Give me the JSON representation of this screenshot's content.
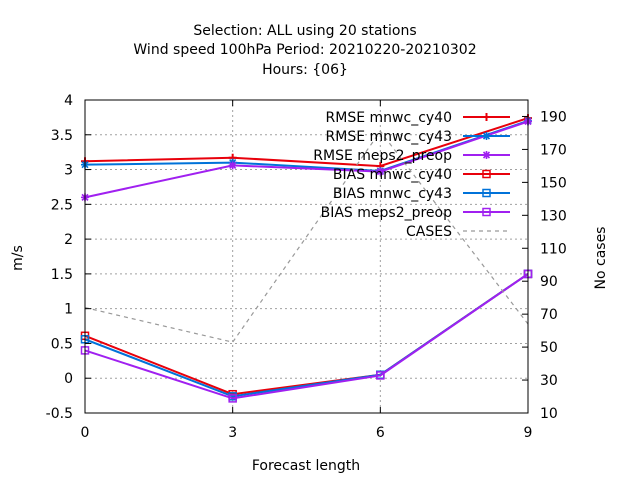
{
  "chart_data": {
    "type": "line",
    "title_lines": [
      "Selection: ALL using    20 stations",
      "Wind speed 100hPa   Period: 20210220-20210302",
      "Hours: {06}"
    ],
    "xlabel": "Forecast length",
    "ylabel": "m/s",
    "y2label": "No cases",
    "x": [
      0,
      3,
      6,
      9
    ],
    "xlim": [
      0,
      9
    ],
    "ylim": [
      -0.5,
      4
    ],
    "y2lim": [
      10,
      200
    ],
    "x_ticks": [
      0,
      3,
      6,
      9
    ],
    "y_ticks": [
      -0.5,
      0,
      0.5,
      1,
      1.5,
      2,
      2.5,
      3,
      3.5,
      4
    ],
    "y_tick_labels": [
      "-0.5",
      "0",
      "0.5",
      "1",
      "1.5",
      "2",
      "2.5",
      "3",
      "3.5",
      "4"
    ],
    "y2_ticks": [
      10,
      30,
      50,
      70,
      90,
      110,
      130,
      150,
      170,
      190
    ],
    "grid": true,
    "legend_position": "top-right",
    "series": [
      {
        "name": "RMSE mnwc_cy40",
        "values": [
          3.12,
          3.17,
          3.05,
          3.74
        ],
        "color": "#e8000b",
        "marker": "plus"
      },
      {
        "name": "RMSE mnwc_cy43",
        "values": [
          3.07,
          3.1,
          2.98,
          3.7
        ],
        "color": "#0072d9",
        "marker": "star"
      },
      {
        "name": "RMSE meps2_preop",
        "values": [
          2.6,
          3.06,
          2.97,
          3.69
        ],
        "color": "#a020f0",
        "marker": "star"
      },
      {
        "name": "BIAS mnwc_cy40",
        "values": [
          0.61,
          -0.23,
          0.05,
          1.5
        ],
        "color": "#e8000b",
        "marker": "square"
      },
      {
        "name": "BIAS mnwc_cy43",
        "values": [
          0.56,
          -0.26,
          0.05,
          1.5
        ],
        "color": "#0072d9",
        "marker": "square"
      },
      {
        "name": "BIAS meps2_preop",
        "values": [
          0.4,
          -0.29,
          0.04,
          1.5
        ],
        "color": "#a020f0",
        "marker": "square"
      },
      {
        "name": "CASES",
        "values": [
          74,
          53,
          181,
          64
        ],
        "color": "#999999",
        "marker": "none",
        "dashed": true,
        "axis": "y2"
      }
    ]
  }
}
